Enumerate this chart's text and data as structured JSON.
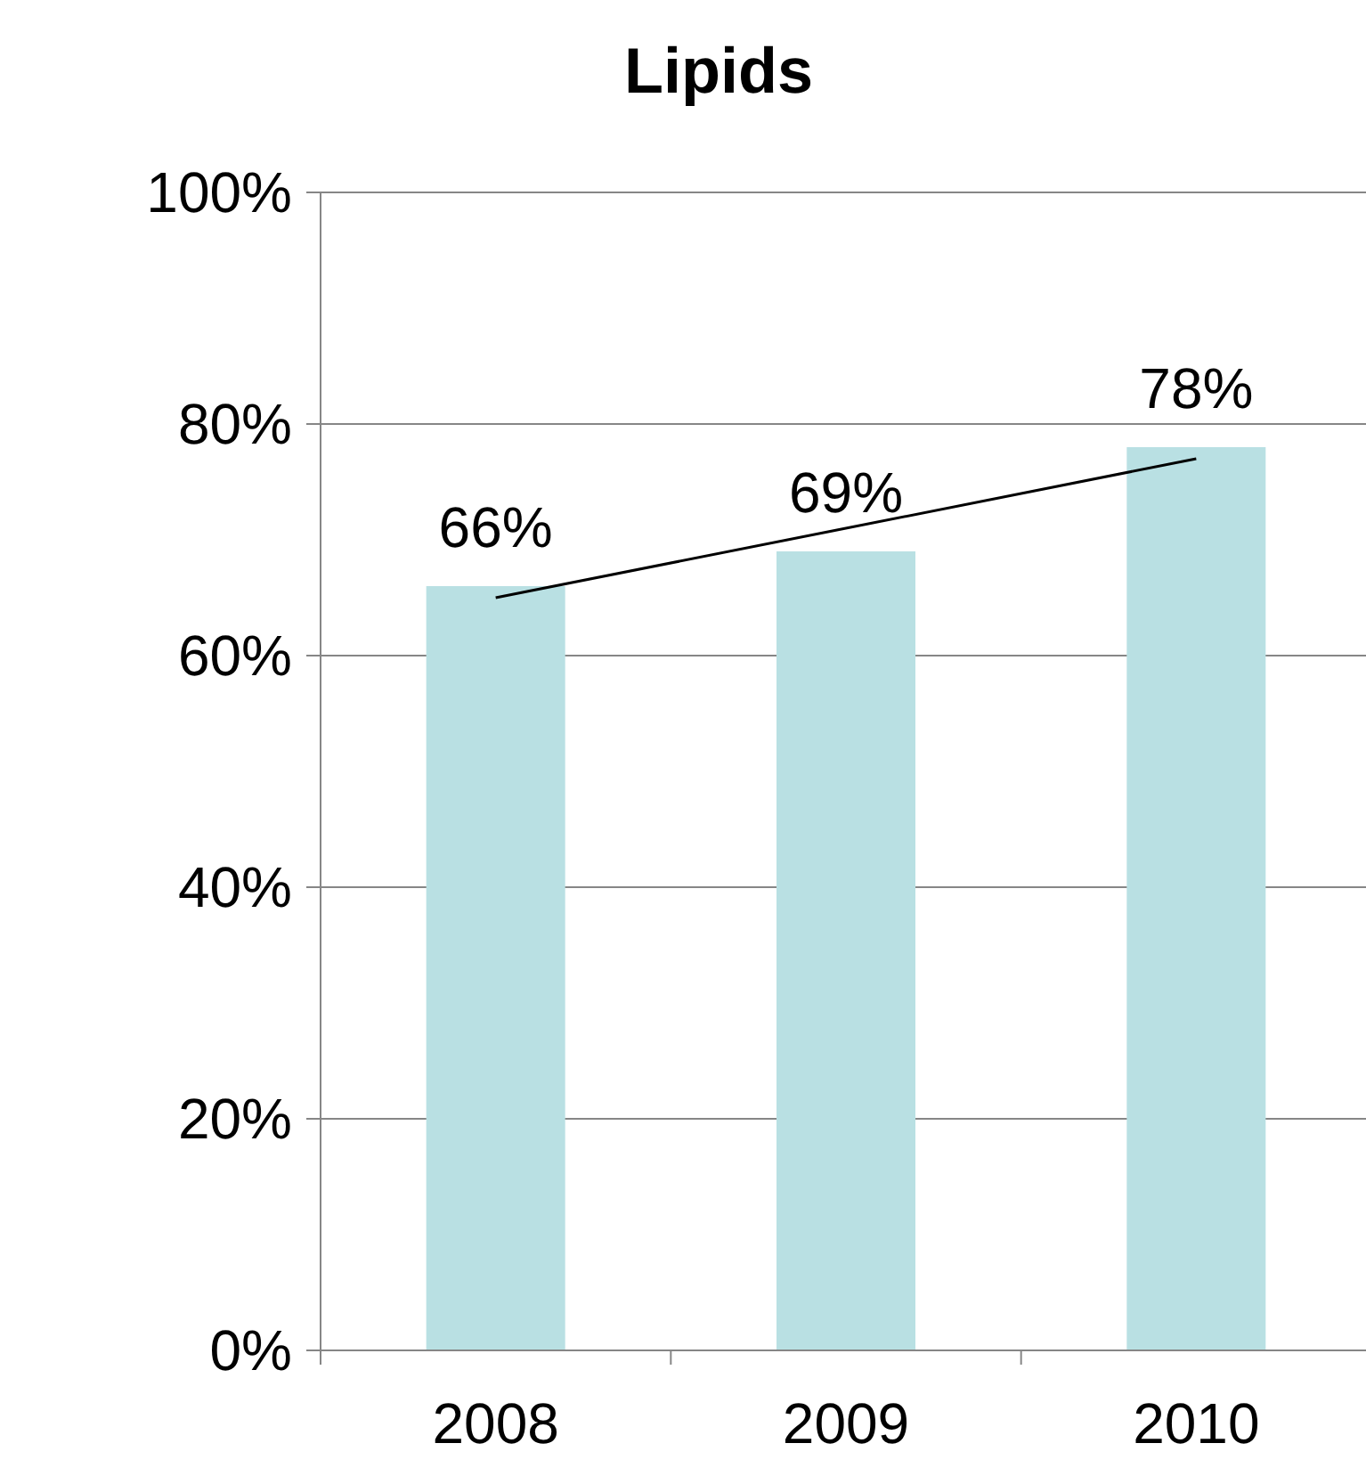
{
  "chart_data": {
    "type": "bar",
    "title": "Lipids",
    "categories": [
      "2008",
      "2009",
      "2010"
    ],
    "series": [
      {
        "color": "#b9e0e3",
        "values": [
          66,
          69,
          78
        ],
        "value_labels": [
          "66%",
          "69%",
          "78%"
        ]
      },
      {
        "type": "line",
        "color": "#000000",
        "values": [
          65,
          71,
          77
        ]
      }
    ],
    "ylim": [
      0,
      100
    ],
    "yticks": [
      {
        "value": 0,
        "label": "0%"
      },
      {
        "value": 20,
        "label": "20%"
      },
      {
        "value": 40,
        "label": "40%"
      },
      {
        "value": 60,
        "label": "60%"
      },
      {
        "value": 80,
        "label": "80%"
      },
      {
        "value": 100,
        "label": "100%"
      }
    ],
    "grid": "y",
    "marker": "none",
    "line_style": "solid"
  }
}
